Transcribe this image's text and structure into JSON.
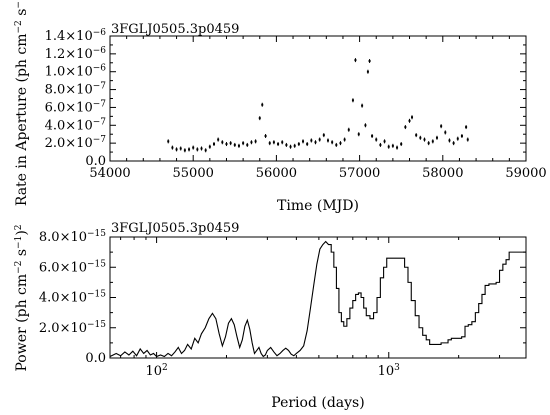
{
  "chart_data": [
    {
      "type": "scatter",
      "title": "3FGLJ0505.3p0459",
      "xlabel": "Time (MJD)",
      "ylabel_parts": [
        "Rate in Aperture (ph cm",
        "−2",
        " s",
        "−1",
        ")"
      ],
      "xlim": [
        54000,
        59000
      ],
      "ylim": [
        0,
        1.4e-06
      ],
      "xticks": [
        54000,
        55000,
        56000,
        57000,
        58000,
        59000
      ],
      "xtick_labels": [
        "54000",
        "55000",
        "56000",
        "57000",
        "58000",
        "59000"
      ],
      "yticks": [
        0,
        2e-07,
        4e-07,
        6e-07,
        8e-07,
        1e-06,
        1.2e-06,
        1.4e-06
      ],
      "ytick_labels": [
        {
          "m": "0.0",
          "e": ""
        },
        {
          "m": "2.0×10",
          "e": "−7"
        },
        {
          "m": "4.0×10",
          "e": "−7"
        },
        {
          "m": "6.0×10",
          "e": "−7"
        },
        {
          "m": "8.0×10",
          "e": "−7"
        },
        {
          "m": "1.0×10",
          "e": "−6"
        },
        {
          "m": "1.2×10",
          "e": "−6"
        },
        {
          "m": "1.4×10",
          "e": "−6"
        }
      ],
      "points": [
        [
          54700,
          2.2e-07
        ],
        [
          54750,
          1.5e-07
        ],
        [
          54800,
          1.3e-07
        ],
        [
          54850,
          1.4e-07
        ],
        [
          54900,
          1.2e-07
        ],
        [
          54950,
          1.3e-07
        ],
        [
          55000,
          1.5e-07
        ],
        [
          55050,
          1.3e-07
        ],
        [
          55100,
          1.4e-07
        ],
        [
          55150,
          1.2e-07
        ],
        [
          55200,
          1.6e-07
        ],
        [
          55250,
          1.9e-07
        ],
        [
          55300,
          2.4e-07
        ],
        [
          55350,
          2.1e-07
        ],
        [
          55400,
          1.9e-07
        ],
        [
          55450,
          2e-07
        ],
        [
          55500,
          1.8e-07
        ],
        [
          55550,
          1.7e-07
        ],
        [
          55600,
          2e-07
        ],
        [
          55650,
          1.8e-07
        ],
        [
          55700,
          2.1e-07
        ],
        [
          55750,
          2.2e-07
        ],
        [
          55800,
          4.8e-07
        ],
        [
          55830,
          6.3e-07
        ],
        [
          55870,
          2.8e-07
        ],
        [
          55920,
          2e-07
        ],
        [
          55970,
          2.1e-07
        ],
        [
          56020,
          1.9e-07
        ],
        [
          56070,
          2.1e-07
        ],
        [
          56120,
          1.8e-07
        ],
        [
          56170,
          1.6e-07
        ],
        [
          56220,
          1.7e-07
        ],
        [
          56270,
          1.9e-07
        ],
        [
          56320,
          2.2e-07
        ],
        [
          56370,
          1.9e-07
        ],
        [
          56420,
          2.3e-07
        ],
        [
          56470,
          2.1e-07
        ],
        [
          56520,
          2.4e-07
        ],
        [
          56570,
          2.9e-07
        ],
        [
          56620,
          2.3e-07
        ],
        [
          56670,
          2.1e-07
        ],
        [
          56720,
          1.8e-07
        ],
        [
          56770,
          2e-07
        ],
        [
          56820,
          2.4e-07
        ],
        [
          56870,
          3.5e-07
        ],
        [
          56920,
          6.8e-07
        ],
        [
          56950,
          1.13e-06
        ],
        [
          56990,
          3e-07
        ],
        [
          57030,
          6.2e-07
        ],
        [
          57070,
          4e-07
        ],
        [
          57100,
          1e-06
        ],
        [
          57120,
          1.12e-06
        ],
        [
          57150,
          2.8e-07
        ],
        [
          57200,
          2.4e-07
        ],
        [
          57250,
          1.8e-07
        ],
        [
          57300,
          2.2e-07
        ],
        [
          57350,
          1.6e-07
        ],
        [
          57400,
          1.7e-07
        ],
        [
          57450,
          1.5e-07
        ],
        [
          57500,
          1.9e-07
        ],
        [
          57550,
          3.8e-07
        ],
        [
          57600,
          4.5e-07
        ],
        [
          57630,
          4.9e-07
        ],
        [
          57680,
          2.9e-07
        ],
        [
          57730,
          2.6e-07
        ],
        [
          57780,
          2.4e-07
        ],
        [
          57830,
          2e-07
        ],
        [
          57880,
          2.2e-07
        ],
        [
          57930,
          2.6e-07
        ],
        [
          57980,
          3.9e-07
        ],
        [
          58030,
          3.2e-07
        ],
        [
          58080,
          2.3e-07
        ],
        [
          58130,
          2e-07
        ],
        [
          58180,
          2.5e-07
        ],
        [
          58230,
          2.8e-07
        ],
        [
          58280,
          3.8e-07
        ],
        [
          58300,
          2.4e-07
        ]
      ]
    },
    {
      "type": "line",
      "title": "3FGLJ0505.3p0459",
      "xlabel": "Period (days)",
      "ylabel_parts": [
        "Power (ph cm",
        "−2",
        " s",
        "−1",
        ")",
        "2"
      ],
      "xscale": "log",
      "xlim": [
        63,
        3900
      ],
      "ylim": [
        0,
        8e-15
      ],
      "xtick_labels": [
        {
          "v": 100,
          "m": "10",
          "e": "2"
        },
        {
          "v": 1000,
          "m": "10",
          "e": "3"
        }
      ],
      "yticks": [
        0,
        2e-15,
        4e-15,
        6e-15,
        8e-15
      ],
      "ytick_labels": [
        {
          "m": "0.0",
          "e": ""
        },
        {
          "m": "2.0×10",
          "e": "−15"
        },
        {
          "m": "4.0×10",
          "e": "−15"
        },
        {
          "m": "6.0×10",
          "e": "−15"
        },
        {
          "m": "8.0×10",
          "e": "−15"
        }
      ],
      "series": [
        {
          "x": [
            63,
            67,
            70,
            73,
            76,
            79,
            82,
            85,
            88,
            91,
            94,
            97,
            100,
            104,
            108,
            112,
            116,
            120,
            124,
            128,
            132,
            136,
            141,
            146,
            151,
            156,
            162,
            168,
            174,
            180,
            186,
            192,
            198,
            204,
            210,
            216,
            222,
            228,
            234,
            240,
            246,
            252,
            258,
            264,
            270,
            276,
            282,
            288,
            294,
            300,
            310,
            320,
            330,
            340,
            350,
            360,
            370,
            380,
            390,
            400,
            415,
            430,
            445,
            460,
            475,
            490,
            505,
            520,
            535,
            550,
            565,
            580,
            595,
            610,
            625,
            640,
            660,
            680,
            700,
            720,
            740,
            760,
            780,
            800,
            830,
            860,
            890,
            920,
            950,
            980,
            1010,
            1050,
            1090,
            1130,
            1170,
            1210,
            1250,
            1300,
            1350,
            1400,
            1450,
            1500,
            1560,
            1620,
            1680,
            1740,
            1800,
            1860,
            1920,
            1990,
            2060,
            2130,
            2200,
            2280,
            2360,
            2440,
            2520,
            2600,
            2700,
            2800,
            2900,
            3000,
            3100,
            3200,
            3300,
            3400,
            3500,
            3600,
            3700,
            3800,
            3900
          ],
          "y": [
            1e-16,
            3e-16,
            1.5e-16,
            4e-16,
            2e-16,
            4.5e-16,
            1.5e-16,
            6e-16,
            3e-16,
            5e-16,
            2e-16,
            3e-16,
            1e-16,
            2e-16,
            1e-16,
            3e-16,
            1.5e-16,
            4e-16,
            7e-16,
            3e-16,
            5e-16,
            9e-16,
            6e-16,
            1.3e-15,
            1e-15,
            1.6e-15,
            2e-15,
            2.6e-15,
            2.95e-15,
            2.6e-15,
            1.6e-15,
            8e-16,
            1.4e-15,
            2.3e-15,
            2.6e-15,
            2.2e-15,
            1.4e-15,
            7e-16,
            1.2e-15,
            2.1e-15,
            2.5e-15,
            1.9e-15,
            1e-15,
            3e-16,
            5e-16,
            7e-16,
            3e-16,
            1e-16,
            2e-16,
            5e-16,
            7e-16,
            4e-16,
            1.5e-16,
            3e-16,
            5e-16,
            6.5e-16,
            5e-16,
            2.5e-16,
            1.5e-16,
            3e-16,
            5e-16,
            8e-16,
            1.8e-15,
            3.3e-15,
            4.8e-15,
            6.2e-15,
            7.2e-15,
            7.5e-15,
            7.7e-15,
            7.5e-15,
            7e-15,
            6e-15,
            4.6e-15,
            3e-15,
            2.4e-15,
            2.1e-15,
            2.6e-15,
            3.3e-15,
            3.8e-15,
            4.2e-15,
            4.3e-15,
            4e-15,
            3.3e-15,
            2.8e-15,
            2.6e-15,
            3e-15,
            4e-15,
            5.3e-15,
            6e-15,
            6.6e-15,
            6.6e-15,
            6.6e-15,
            6.6e-15,
            6.6e-15,
            6e-15,
            5e-15,
            3.8e-15,
            2.8e-15,
            2e-15,
            1.5e-15,
            1.2e-15,
            9e-16,
            9e-16,
            9e-16,
            1e-15,
            1e-15,
            1.2e-15,
            1.3e-15,
            1.3e-15,
            1.3e-15,
            1.4e-15,
            2.1e-15,
            2.2e-15,
            2.4e-15,
            3e-15,
            3.6e-15,
            4.2e-15,
            4.8e-15,
            4.9e-15,
            4.9e-15,
            5e-15,
            5.8e-15,
            6.2e-15,
            6.5e-15,
            7e-15,
            7e-15,
            7e-15,
            7e-15,
            7e-15,
            7e-15,
            7e-15
          ]
        }
      ]
    }
  ]
}
